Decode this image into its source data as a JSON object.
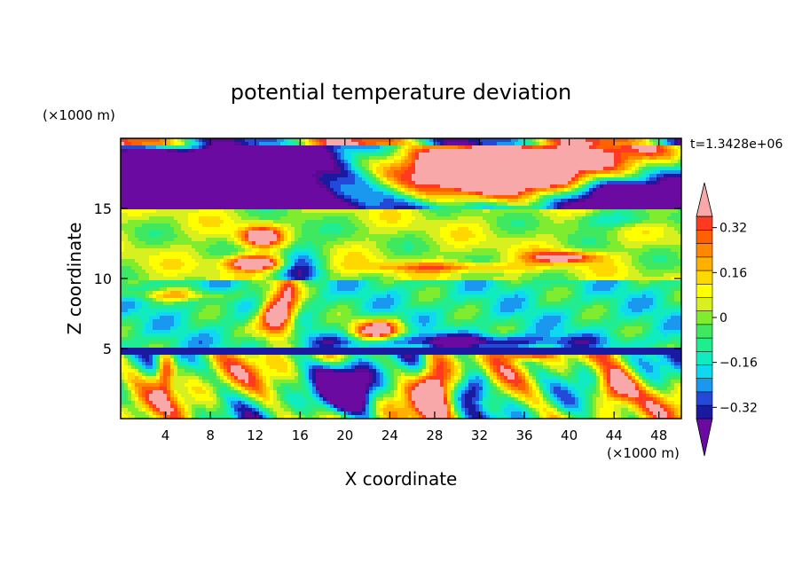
{
  "chart_data": {
    "type": "heatmap",
    "title": "potential temperature deviation",
    "xlabel": "X coordinate",
    "ylabel": "Z coordinate",
    "x_scale_label": "(×1000 m)",
    "y_scale_label": "(×1000 m)",
    "time_label": "t=1.3428e+06",
    "xlim": [
      0,
      50
    ],
    "ylim": [
      0,
      20
    ],
    "x_ticks": [
      4,
      8,
      12,
      16,
      20,
      24,
      28,
      32,
      36,
      40,
      44,
      48
    ],
    "y_ticks": [
      5,
      10,
      15
    ],
    "colorbar": {
      "levels": [
        -0.4,
        -0.36,
        -0.32,
        -0.28,
        -0.24,
        -0.2,
        -0.16,
        -0.12,
        -0.08,
        -0.04,
        0,
        0.04,
        0.08,
        0.12,
        0.16,
        0.2,
        0.24,
        0.28,
        0.32,
        0.36,
        0.4
      ],
      "tick_labels": [
        "0.32",
        "0.16",
        "0",
        "−0.16",
        "−0.32"
      ],
      "tick_values": [
        0.32,
        0.16,
        0,
        -0.16,
        -0.32
      ],
      "colors_bottom_to_top": [
        "#5a0a92",
        "#1a1aa0",
        "#2448d8",
        "#1a98f0",
        "#10d8f0",
        "#10ecc0",
        "#20ec90",
        "#40e860",
        "#80ec30",
        "#d8f020",
        "#ffff00",
        "#ffd800",
        "#ffb000",
        "#ff8800",
        "#ff6000",
        "#ff3a20",
        "#f8a8a8"
      ],
      "under_color": "#6a0aa0",
      "over_color": "#f8a8a8"
    },
    "field_description_bands": [
      {
        "z_range": [
          17.5,
          20
        ],
        "dominant": "negative (purple) on left, positive (pink) on right"
      },
      {
        "z_range": [
          10,
          15
        ],
        "dominant": "near zero (green) with small positive patches"
      },
      {
        "z_range": [
          5,
          10
        ],
        "dominant": "mixed, cyan/blue with pink plumes"
      },
      {
        "z_range": [
          0,
          5
        ],
        "dominant": "strong convective cells, alternating red and purple"
      }
    ]
  }
}
